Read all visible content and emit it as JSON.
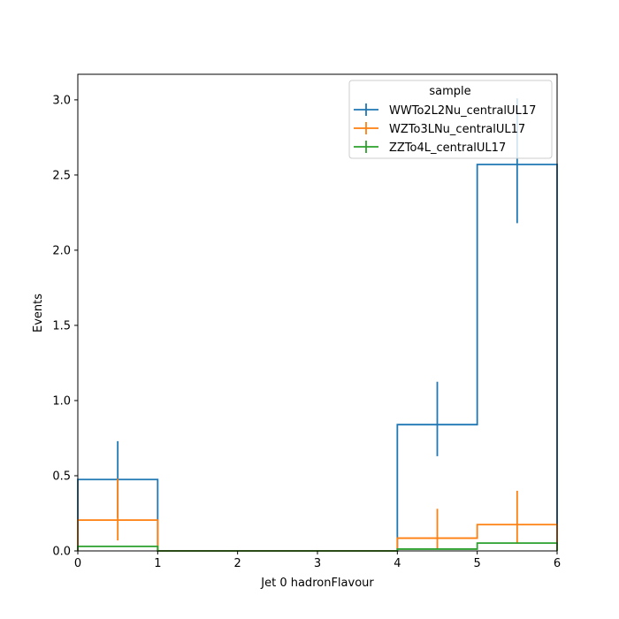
{
  "chart_data": {
    "type": "step-histogram",
    "xlabel": "Jet 0 hadronFlavour",
    "ylabel": "Events",
    "xlim": [
      0,
      6
    ],
    "ylim": [
      0,
      3.17
    ],
    "x_ticks": [
      0,
      1,
      2,
      3,
      4,
      5,
      6
    ],
    "x_tick_labels": [
      "0",
      "1",
      "2",
      "3",
      "4",
      "5",
      "6"
    ],
    "y_ticks": [
      0.0,
      0.5,
      1.0,
      1.5,
      2.0,
      2.5,
      3.0
    ],
    "y_tick_labels": [
      "0.0",
      "0.5",
      "1.0",
      "1.5",
      "2.0",
      "2.5",
      "3.0"
    ],
    "bin_edges": [
      0,
      1,
      2,
      3,
      4,
      5,
      6
    ],
    "grid": false,
    "legend": {
      "title": "sample",
      "placement": "top-right"
    },
    "series": [
      {
        "name": "WWTo2L2Nu_centralUL17",
        "color": "#1f77b4",
        "values": [
          0.475,
          0.0,
          0.0,
          0.0,
          0.84,
          2.57
        ],
        "err_low": [
          0.255,
          0.0,
          0.0,
          0.0,
          0.21,
          0.39
        ],
        "err_high": [
          0.255,
          0.0,
          0.0,
          0.0,
          0.285,
          0.44
        ]
      },
      {
        "name": "WZTo3LNu_centralUL17",
        "color": "#ff7f0e",
        "values": [
          0.205,
          0.0,
          0.0,
          0.0,
          0.085,
          0.175
        ],
        "err_low": [
          0.135,
          0.0,
          0.0,
          0.0,
          0.075,
          0.125
        ],
        "err_high": [
          0.275,
          0.0,
          0.0,
          0.0,
          0.195,
          0.225
        ]
      },
      {
        "name": "ZZTo4L_centralUL17",
        "color": "#2ca02c",
        "values": [
          0.03,
          0.0,
          0.0,
          0.0,
          0.012,
          0.052
        ],
        "err_low": [
          0.0,
          0.0,
          0.0,
          0.0,
          0.0,
          0.0
        ],
        "err_high": [
          0.0,
          0.0,
          0.0,
          0.0,
          0.0,
          0.0
        ]
      }
    ]
  }
}
